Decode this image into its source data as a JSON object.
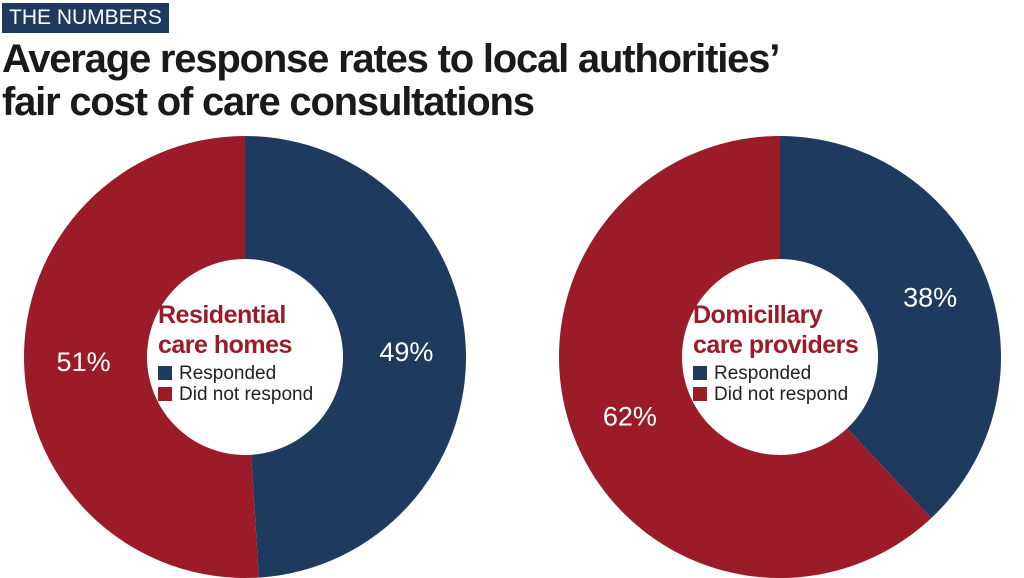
{
  "header": {
    "tag": "THE NUMBERS",
    "title_line1": "Average response rates to local authorities’",
    "title_line2": "fair cost of care consultations"
  },
  "colors": {
    "responded": "#1f3a5f",
    "did_not_respond": "#9b1c28",
    "tag_bg": "#1f3a5f"
  },
  "chart_data": [
    {
      "type": "pie",
      "donut": true,
      "center_label": [
        "Residential",
        "care homes"
      ],
      "legend": [
        "Responded",
        "Did not respond"
      ],
      "categories": [
        "Responded",
        "Did not respond"
      ],
      "values": [
        49,
        51
      ],
      "data_labels": [
        "49%",
        "51%"
      ]
    },
    {
      "type": "pie",
      "donut": true,
      "center_label": [
        "Domicillary",
        "care providers"
      ],
      "legend": [
        "Responded",
        "Did not respond"
      ],
      "categories": [
        "Responded",
        "Did not respond"
      ],
      "values": [
        38,
        62
      ],
      "data_labels": [
        "38%",
        "62%"
      ]
    }
  ]
}
